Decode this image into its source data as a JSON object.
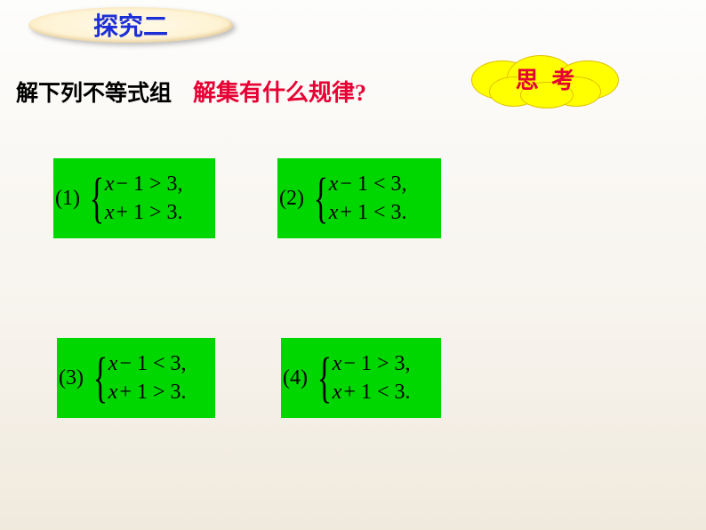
{
  "header_badge": "探究二",
  "subtitle_left": "解下列不等式组",
  "subtitle_mid": "解集有什么规律?",
  "cloud_text": "思 考",
  "problems": {
    "p1": {
      "num": "(1)",
      "line1_a": "x",
      "line1_b": "− 1 > 3,",
      "line2_a": "x",
      "line2_b": "+ 1 > 3."
    },
    "p2": {
      "num": "(2)",
      "line1_a": "x",
      "line1_b": "− 1 < 3,",
      "line2_a": "x",
      "line2_b": "+ 1 < 3."
    },
    "p3": {
      "num": "(3)",
      "line1_a": "x",
      "line1_b": "− 1 < 3,",
      "line2_a": "x",
      "line2_b": "+ 1 > 3."
    },
    "p4": {
      "num": "(4)",
      "line1_a": "x",
      "line1_b": "− 1 > 3,",
      "line2_a": "x",
      "line2_b": "+ 1 < 3."
    }
  },
  "colors": {
    "badge_text": "#1c2ed6",
    "red_text": "#e60033",
    "cloud_bg": "#ffff00",
    "problem_bg": "#00d600"
  }
}
